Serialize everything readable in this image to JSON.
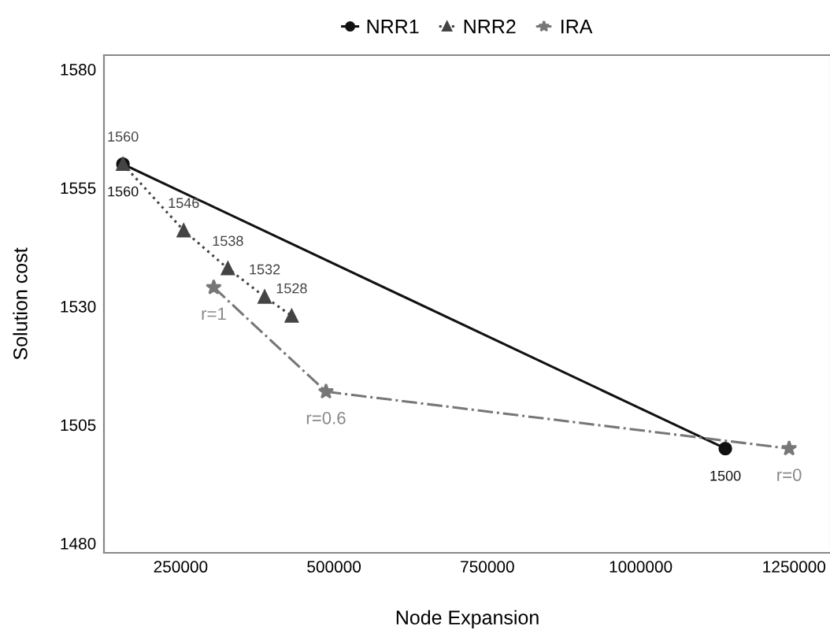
{
  "chart_data": {
    "type": "line",
    "xlabel": "Node Expansion",
    "ylabel": "Solution cost",
    "xlim": [
      125000,
      1310000
    ],
    "ylim": [
      1478,
      1583
    ],
    "xticks": [
      250000,
      500000,
      750000,
      1000000,
      1250000
    ],
    "yticks": [
      1480,
      1505,
      1530,
      1555,
      1580
    ],
    "grid": false,
    "legend": "top",
    "series": [
      {
        "name": "NRR1",
        "color": "#111111",
        "marker": "circle",
        "line_style": "solid",
        "x": [
          156000,
          1138000
        ],
        "values": [
          1560,
          1500
        ],
        "value_labels": [
          "1560",
          "1500"
        ]
      },
      {
        "name": "NRR2",
        "color": "#444444",
        "marker": "triangle",
        "line_style": "dotted",
        "x": [
          156000,
          255000,
          327000,
          387000,
          431000
        ],
        "values": [
          1560,
          1546,
          1538,
          1532,
          1528
        ],
        "value_labels": [
          "1560",
          "1546",
          "1538",
          "1532",
          "1528"
        ]
      },
      {
        "name": "IRA",
        "color": "#777777",
        "marker": "star",
        "line_style": "dashdot",
        "x": [
          304000,
          487000,
          1242000
        ],
        "values": [
          1534,
          1512,
          1500
        ]
      }
    ],
    "annotations": [
      {
        "text": "r=1",
        "x": 304000,
        "y": 1534
      },
      {
        "text": "r=0.6",
        "x": 487000,
        "y": 1512
      },
      {
        "text": "r=0",
        "x": 1242000,
        "y": 1500
      }
    ]
  }
}
